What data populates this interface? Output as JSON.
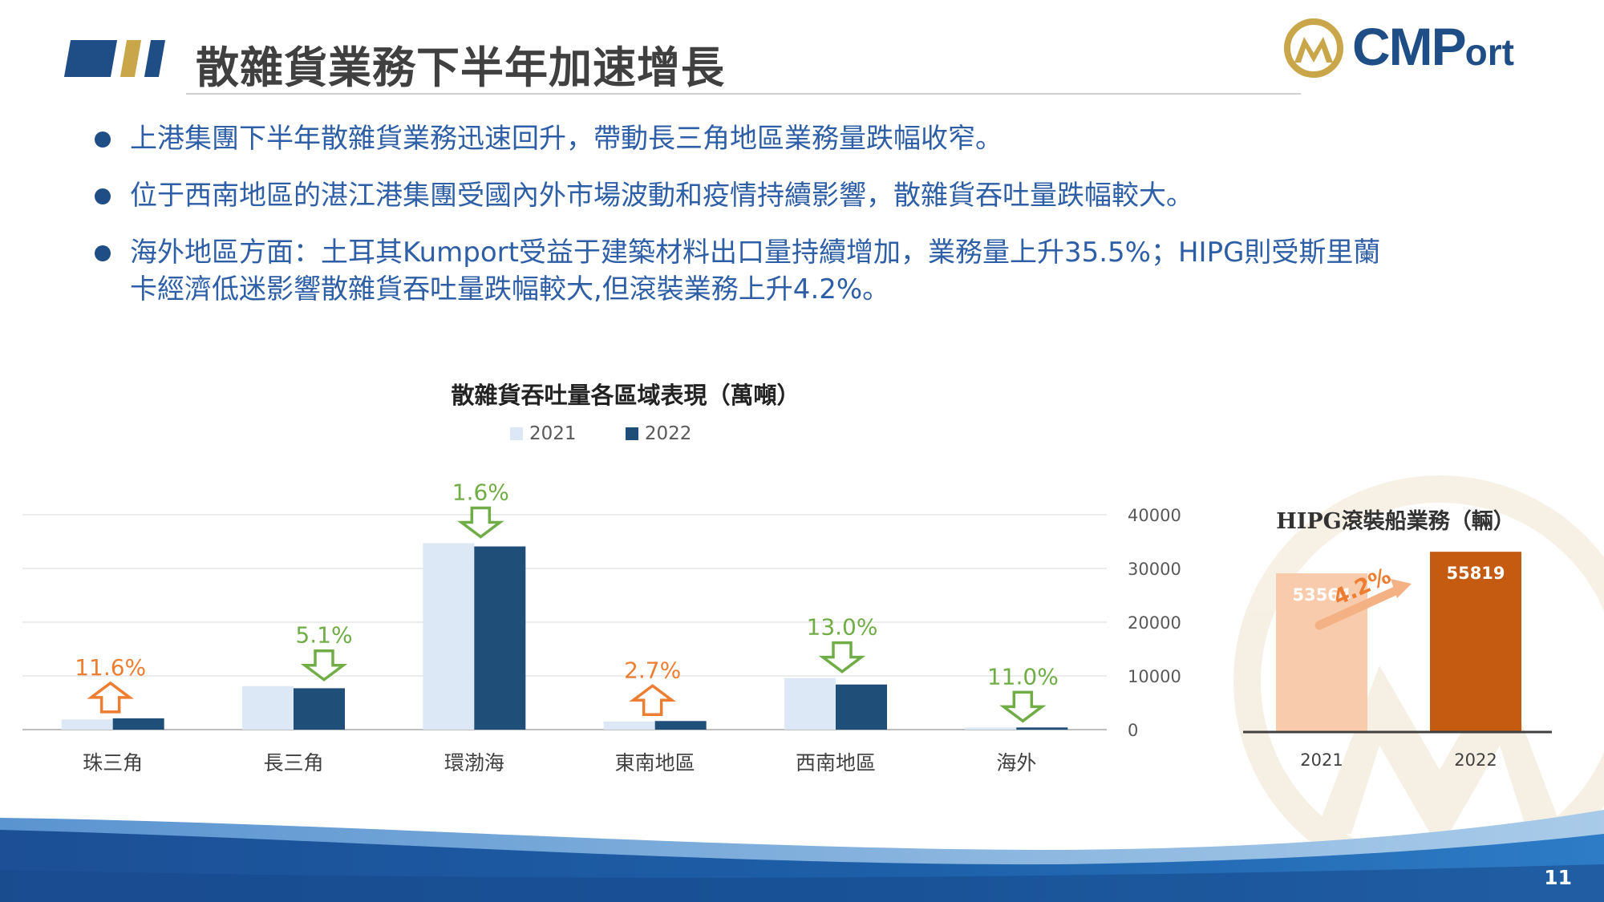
{
  "header": {
    "title": "散雜貨業務下半年加速增長",
    "logo_text": "CMP",
    "logo_text_small": "ort",
    "bar_colors": [
      "#1f4e86",
      "#c9a64a",
      "#1f4e86"
    ]
  },
  "bullets": [
    "上港集團下半年散雜貨業務迅速回升，帶動長三角地區業務量跌幅收窄。",
    "位于西南地區的湛江港集團受國內外市場波動和疫情持續影響，散雜貨吞吐量跌幅較大。",
    "海外地區方面：土耳其Kumport受益于建築材料出口量持續增加，業務量上升35.5%；HIPG則受斯里蘭卡經濟低迷影響散雜貨吞吐量跌幅較大,但滾裝業務上升4.2%。"
  ],
  "page_number": "11",
  "colors": {
    "series_2021": "#dce8f5",
    "series_2022": "#1f4e79",
    "up_arrow": "#ed7d31",
    "down_arrow": "#70ad47",
    "hipg_2021": "#f7cbac",
    "hipg_2022": "#c55a11",
    "hipg_arrow": "#f4b183"
  },
  "chart_data": [
    {
      "type": "bar",
      "title": "散雜貨吞吐量各區域表現（萬噸）",
      "categories": [
        "珠三角",
        "長三角",
        "環渤海",
        "東南地區",
        "西南地區",
        "海外"
      ],
      "series": [
        {
          "name": "2021",
          "values": [
            1900,
            8100,
            34700,
            1500,
            9600,
            400
          ]
        },
        {
          "name": "2022",
          "values": [
            2100,
            7700,
            34100,
            1600,
            8400,
            400
          ]
        }
      ],
      "annotations": [
        {
          "label": "11.6%",
          "direction": "up"
        },
        {
          "label": "5.1%",
          "direction": "down"
        },
        {
          "label": "1.6%",
          "direction": "down"
        },
        {
          "label": "2.7%",
          "direction": "up"
        },
        {
          "label": "13.0%",
          "direction": "down"
        },
        {
          "label": "11.0%",
          "direction": "down"
        }
      ],
      "ylim": [
        0,
        40000
      ],
      "yticks": [
        "0",
        "10000",
        "20000",
        "30000",
        "40000"
      ],
      "y_axis_side": "right",
      "grid": true,
      "legend": "top"
    },
    {
      "type": "bar",
      "title": "HIPG滾裝船業務（輛）",
      "categories": [
        "2021",
        "2022"
      ],
      "values": [
        53564,
        55819
      ],
      "value_labels": [
        "53564",
        "55819"
      ],
      "growth_label": "4.2%"
    }
  ]
}
